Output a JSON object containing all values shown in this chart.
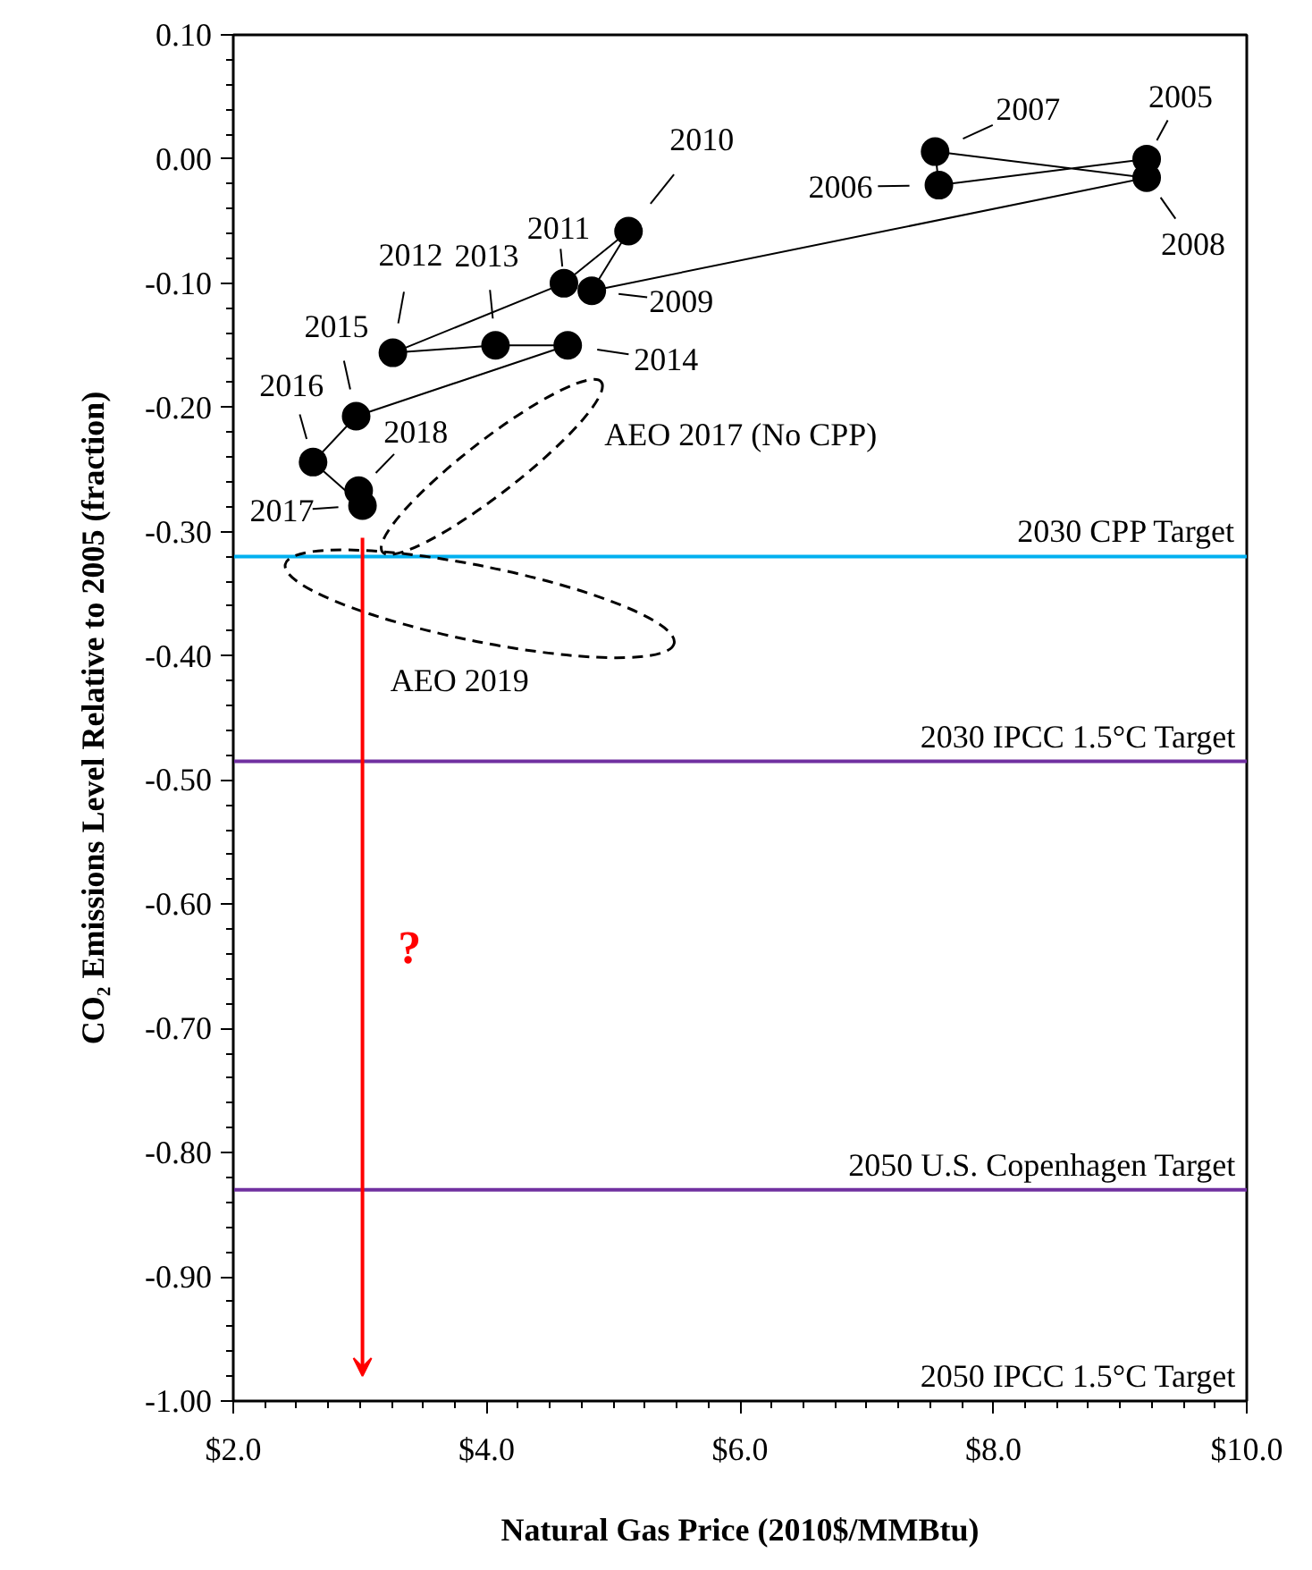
{
  "chart_data": {
    "type": "line",
    "xlabel": "Natural Gas Price (2010$/MMBtu)",
    "ylabel": "CO₂ Emissions Level Relative to 2005 (fraction)",
    "marker": "circle",
    "series": [
      {
        "color": "#000000",
        "x": [
          9.21,
          7.57,
          7.54,
          9.21,
          4.83,
          5.12,
          4.61,
          3.26,
          4.07,
          4.64,
          2.97,
          2.63,
          3.02,
          2.99
        ],
        "values": [
          0.0,
          -0.021,
          0.006,
          -0.015,
          -0.106,
          -0.058,
          -0.1,
          -0.156,
          -0.15,
          -0.15,
          -0.207,
          -0.244,
          -0.279,
          -0.267
        ]
      }
    ],
    "xlim": [
      2.0,
      10.0
    ],
    "xticks": [
      {
        "value": 2,
        "label": "$2.0"
      },
      {
        "value": 4,
        "label": "$4.0"
      },
      {
        "value": 6,
        "label": "$6.0"
      },
      {
        "value": 8,
        "label": "$8.0"
      },
      {
        "value": 10,
        "label": "$10.0"
      }
    ],
    "ylim": [
      -1.0,
      0.1
    ],
    "yticks": [
      {
        "value": 0.1,
        "label": "0.10"
      },
      {
        "value": 0,
        "label": "0.00"
      },
      {
        "value": -0.1,
        "label": "-0.10"
      },
      {
        "value": -0.2,
        "label": "-0.20"
      },
      {
        "value": -0.3,
        "label": "-0.30"
      },
      {
        "value": -0.4,
        "label": "-0.40"
      },
      {
        "value": -0.5,
        "label": "-0.50"
      },
      {
        "value": -0.6,
        "label": "-0.60"
      },
      {
        "value": -0.7,
        "label": "-0.70"
      },
      {
        "value": -0.8,
        "label": "-0.80"
      },
      {
        "value": -0.9,
        "label": "-0.90"
      },
      {
        "value": -1.0,
        "label": "-1.00"
      }
    ],
    "ref_lines": [
      {
        "axis": "y",
        "value": -0.32,
        "label": "2030 CPP Target",
        "color": "#00b0f0"
      },
      {
        "axis": "y",
        "value": -0.485,
        "label": "2030 IPCC 1.5°C Target",
        "color": "#7030a0"
      },
      {
        "axis": "y",
        "value": -0.83,
        "label": "2050 U.S. Copenhagen Target",
        "color": "#7030a0"
      }
    ],
    "annotations": [
      {
        "text": "2005",
        "x": 9.21,
        "y": 0.0
      },
      {
        "text": "2006",
        "x": 7.57,
        "y": -0.021
      },
      {
        "text": "2007",
        "x": 7.54,
        "y": 0.006
      },
      {
        "text": "2008",
        "x": 9.21,
        "y": -0.015
      },
      {
        "text": "2009",
        "x": 4.83,
        "y": -0.106
      },
      {
        "text": "2010",
        "x": 5.12,
        "y": -0.058
      },
      {
        "text": "2011",
        "x": 4.61,
        "y": -0.1
      },
      {
        "text": "2012",
        "x": 3.26,
        "y": -0.156
      },
      {
        "text": "2013",
        "x": 4.07,
        "y": -0.15
      },
      {
        "text": "2014",
        "x": 4.64,
        "y": -0.15
      },
      {
        "text": "2015",
        "x": 2.97,
        "y": -0.207
      },
      {
        "text": "2016",
        "x": 2.63,
        "y": -0.244
      },
      {
        "text": "2017",
        "x": 3.02,
        "y": -0.279
      },
      {
        "text": "2018",
        "x": 2.99,
        "y": -0.267
      },
      "AEO 2017 (No CPP)",
      "AEO 2019",
      "?",
      "2050 IPCC 1.5°C Target"
    ]
  }
}
